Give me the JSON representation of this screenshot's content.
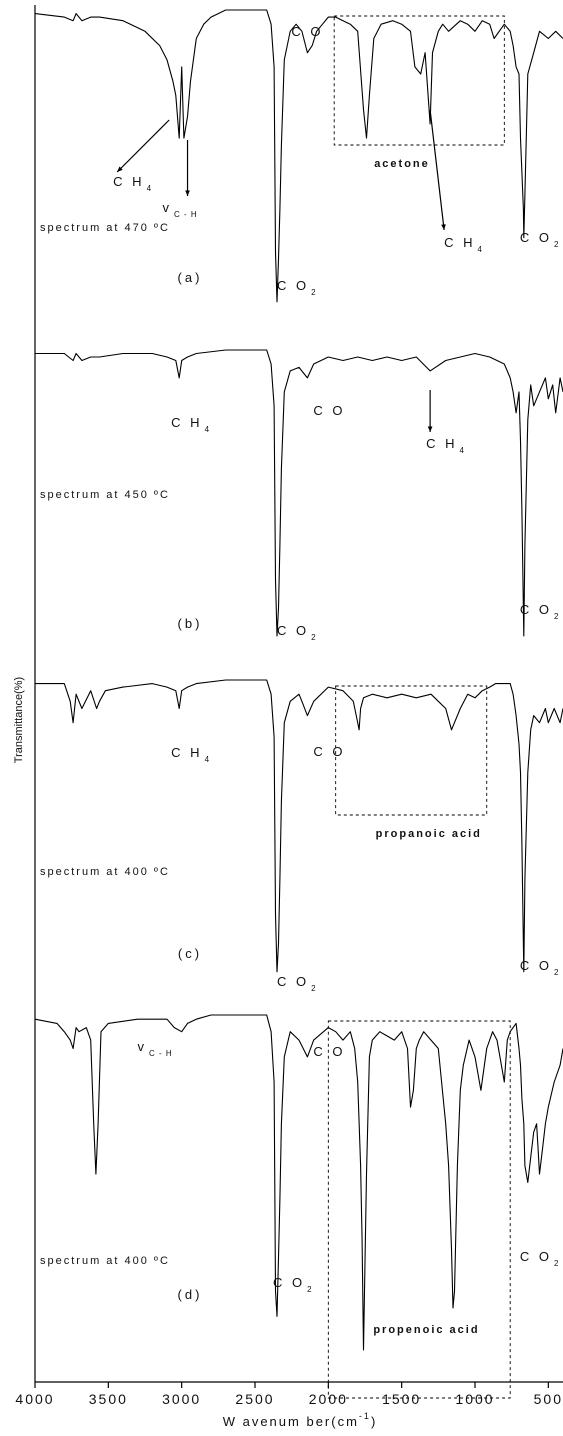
{
  "chart_data": {
    "type": "line",
    "xlabel": "W avenum ber(cm",
    "xlabel_sup": "-1",
    "xlabel_close": ")",
    "ylabel": "Transmittance(%)",
    "x_reversed": true,
    "xlim": [
      4000,
      400
    ],
    "x_ticks": [
      4000,
      3500,
      3000,
      2500,
      2000,
      1500,
      1000,
      500
    ],
    "x_tick_labels": [
      "4000",
      "3500",
      "3000",
      "2500",
      "2000",
      "1500",
      "1000",
      "500"
    ],
    "grid": false,
    "panels": [
      {
        "tag": "(a)",
        "condition": "spectrum at 470 ºC",
        "baseline": 95,
        "series": {
          "x": [
            4000,
            3800,
            3740,
            3720,
            3680,
            3620,
            3560,
            3400,
            3250,
            3150,
            3100,
            3060,
            3040,
            3017,
            3000,
            2985,
            2960,
            2940,
            2900,
            2850,
            2800,
            2700,
            2500,
            2420,
            2390,
            2370,
            2360,
            2350,
            2340,
            2330,
            2320,
            2300,
            2260,
            2220,
            2180,
            2143,
            2110,
            2080,
            2040,
            2000,
            1950,
            1900,
            1850,
            1800,
            1760,
            1740,
            1720,
            1690,
            1640,
            1560,
            1500,
            1440,
            1410,
            1370,
            1340,
            1306,
            1290,
            1250,
            1220,
            1180,
            1100,
            1050,
            1000,
            950,
            900,
            870,
            800,
            760,
            740,
            720,
            700,
            690,
            670,
            667,
            660,
            640,
            600,
            560,
            500,
            450,
            400
          ],
          "y": [
            95,
            94,
            93,
            95,
            93,
            94,
            94,
            93,
            90,
            86,
            82,
            76,
            72,
            60,
            80,
            60,
            66,
            76,
            88,
            92,
            94,
            96,
            96,
            96,
            92,
            80,
            28,
            14,
            26,
            40,
            58,
            82,
            90,
            92,
            90,
            84,
            86,
            90,
            92,
            94,
            94,
            93,
            92,
            90,
            68,
            60,
            72,
            88,
            92,
            93,
            92,
            90,
            80,
            78,
            84,
            64,
            84,
            90,
            92,
            90,
            93,
            92,
            90,
            93,
            92,
            88,
            92,
            90,
            86,
            80,
            78,
            60,
            40,
            32,
            44,
            78,
            84,
            90,
            88,
            90,
            88
          ]
        },
        "annotations": [
          {
            "text": "C H",
            "sub": "4",
            "x": 3017
          },
          {
            "text": "v",
            "sub": "C - H",
            "x": 2960
          },
          {
            "text": "C O",
            "sub": "2",
            "x": 2350
          },
          {
            "text": "C O",
            "sub": "",
            "x": 2143
          },
          {
            "text": "C H",
            "sub": "4",
            "x": 1306
          },
          {
            "text": "C O",
            "sub": "2",
            "x": 667
          }
        ],
        "box": {
          "label": "acetone",
          "x_range": [
            1960,
            800
          ]
        }
      },
      {
        "tag": "(b)",
        "condition": "spectrum at 450 ºC",
        "baseline": 95,
        "series": {
          "x": [
            4000,
            3800,
            3740,
            3720,
            3680,
            3620,
            3560,
            3400,
            3200,
            3100,
            3040,
            3017,
            3000,
            2960,
            2900,
            2700,
            2500,
            2420,
            2390,
            2370,
            2360,
            2350,
            2340,
            2330,
            2320,
            2300,
            2260,
            2200,
            2143,
            2100,
            2000,
            1900,
            1800,
            1700,
            1600,
            1500,
            1400,
            1306,
            1200,
            1100,
            1000,
            900,
            800,
            760,
            740,
            720,
            700,
            690,
            680,
            667,
            660,
            640,
            620,
            600,
            560,
            520,
            500,
            470,
            450,
            420,
            400
          ],
          "y": [
            95,
            95,
            93,
            95,
            93,
            94,
            94,
            95,
            95,
            94,
            93,
            88,
            93,
            94,
            95,
            96,
            96,
            96,
            92,
            80,
            30,
            14,
            22,
            40,
            62,
            84,
            90,
            91,
            88,
            92,
            94,
            93,
            94,
            93,
            94,
            93,
            94,
            90,
            93,
            94,
            95,
            94,
            92,
            88,
            84,
            78,
            84,
            70,
            50,
            14,
            40,
            76,
            86,
            80,
            84,
            88,
            82,
            86,
            78,
            88,
            84
          ]
        },
        "annotations": [
          {
            "text": "C H",
            "sub": "4",
            "x": 3017
          },
          {
            "text": "C O",
            "sub": "",
            "x": 2143
          },
          {
            "text": "C H",
            "sub": "4",
            "x": 1306
          },
          {
            "text": "C O",
            "sub": "2",
            "x": 2350
          },
          {
            "text": "C O",
            "sub": "2",
            "x": 667
          }
        ],
        "box": null
      },
      {
        "tag": "(c)",
        "condition": "spectrum at 400 ºC",
        "baseline": 95,
        "series": {
          "x": [
            4000,
            3800,
            3760,
            3740,
            3720,
            3680,
            3620,
            3580,
            3560,
            3520,
            3400,
            3200,
            3100,
            3040,
            3017,
            3000,
            2960,
            2900,
            2700,
            2500,
            2420,
            2390,
            2370,
            2360,
            2350,
            2340,
            2330,
            2320,
            2300,
            2260,
            2200,
            2180,
            2143,
            2100,
            2000,
            1900,
            1830,
            1800,
            1790,
            1780,
            1760,
            1700,
            1600,
            1500,
            1400,
            1300,
            1250,
            1200,
            1160,
            1100,
            1050,
            1000,
            950,
            900,
            860,
            800,
            760,
            740,
            720,
            700,
            690,
            680,
            667,
            660,
            640,
            620,
            600,
            560,
            520,
            500,
            460,
            420,
            400
          ],
          "y": [
            95,
            95,
            90,
            84,
            92,
            88,
            93,
            88,
            90,
            93,
            94,
            95,
            94,
            93,
            88,
            93,
            94,
            95,
            96,
            96,
            96,
            92,
            80,
            30,
            14,
            22,
            40,
            62,
            84,
            90,
            92,
            90,
            86,
            90,
            94,
            93,
            90,
            84,
            82,
            88,
            91,
            92,
            91,
            92,
            91,
            92,
            90,
            88,
            82,
            88,
            92,
            91,
            93,
            94,
            95,
            95,
            95,
            92,
            86,
            78,
            70,
            50,
            14,
            40,
            70,
            82,
            86,
            84,
            88,
            84,
            88,
            84,
            88
          ]
        },
        "annotations": [
          {
            "text": "C H",
            "sub": "4",
            "x": 3017
          },
          {
            "text": "C O",
            "sub": "",
            "x": 2143
          },
          {
            "text": "C O",
            "sub": "2",
            "x": 2350
          },
          {
            "text": "C O",
            "sub": "2",
            "x": 667
          }
        ],
        "box": {
          "label": "propanoic acid",
          "x_range": [
            1950,
            920
          ]
        }
      },
      {
        "tag": "(d)",
        "condition": "spectrum at 400 ºC",
        "baseline": 95,
        "series": {
          "x": [
            4000,
            3850,
            3800,
            3760,
            3740,
            3720,
            3700,
            3650,
            3620,
            3600,
            3585,
            3570,
            3550,
            3500,
            3300,
            3100,
            3050,
            3000,
            2960,
            2900,
            2800,
            2700,
            2500,
            2420,
            2390,
            2370,
            2360,
            2350,
            2340,
            2330,
            2320,
            2300,
            2260,
            2200,
            2143,
            2100,
            2000,
            1950,
            1900,
            1850,
            1820,
            1800,
            1780,
            1770,
            1760,
            1740,
            1720,
            1700,
            1650,
            1600,
            1550,
            1500,
            1460,
            1440,
            1420,
            1400,
            1380,
            1350,
            1300,
            1250,
            1200,
            1180,
            1160,
            1150,
            1140,
            1120,
            1100,
            1080,
            1040,
            1000,
            960,
            920,
            880,
            850,
            820,
            800,
            780,
            760,
            740,
            720,
            700,
            690,
            680,
            667,
            660,
            640,
            620,
            600,
            580,
            570,
            560,
            540,
            520,
            500,
            460,
            420,
            400
          ],
          "y": [
            95,
            94,
            92,
            90,
            88,
            93,
            92,
            93,
            90,
            70,
            58,
            70,
            92,
            94,
            95,
            95,
            93,
            92,
            94,
            95,
            96,
            96,
            96,
            96,
            92,
            80,
            30,
            24,
            38,
            52,
            70,
            86,
            92,
            90,
            86,
            90,
            93,
            92,
            90,
            92,
            88,
            80,
            60,
            42,
            16,
            58,
            86,
            90,
            92,
            91,
            90,
            92,
            88,
            74,
            78,
            88,
            90,
            92,
            90,
            88,
            70,
            60,
            40,
            26,
            30,
            60,
            78,
            84,
            90,
            86,
            78,
            88,
            92,
            90,
            84,
            80,
            90,
            92,
            93,
            94,
            88,
            84,
            76,
            70,
            60,
            56,
            62,
            68,
            70,
            64,
            58,
            64,
            70,
            74,
            80,
            84,
            88
          ]
        },
        "annotations": [
          {
            "text": "v",
            "sub": "C - H",
            "x": 2960
          },
          {
            "text": "C O",
            "sub": "",
            "x": 2143
          },
          {
            "text": "C O",
            "sub": "2",
            "x": 2350
          },
          {
            "text": "C O",
            "sub": "2",
            "x": 667
          }
        ],
        "box": {
          "label": "propenoic acid",
          "x_range": [
            2000,
            760
          ]
        }
      }
    ]
  }
}
